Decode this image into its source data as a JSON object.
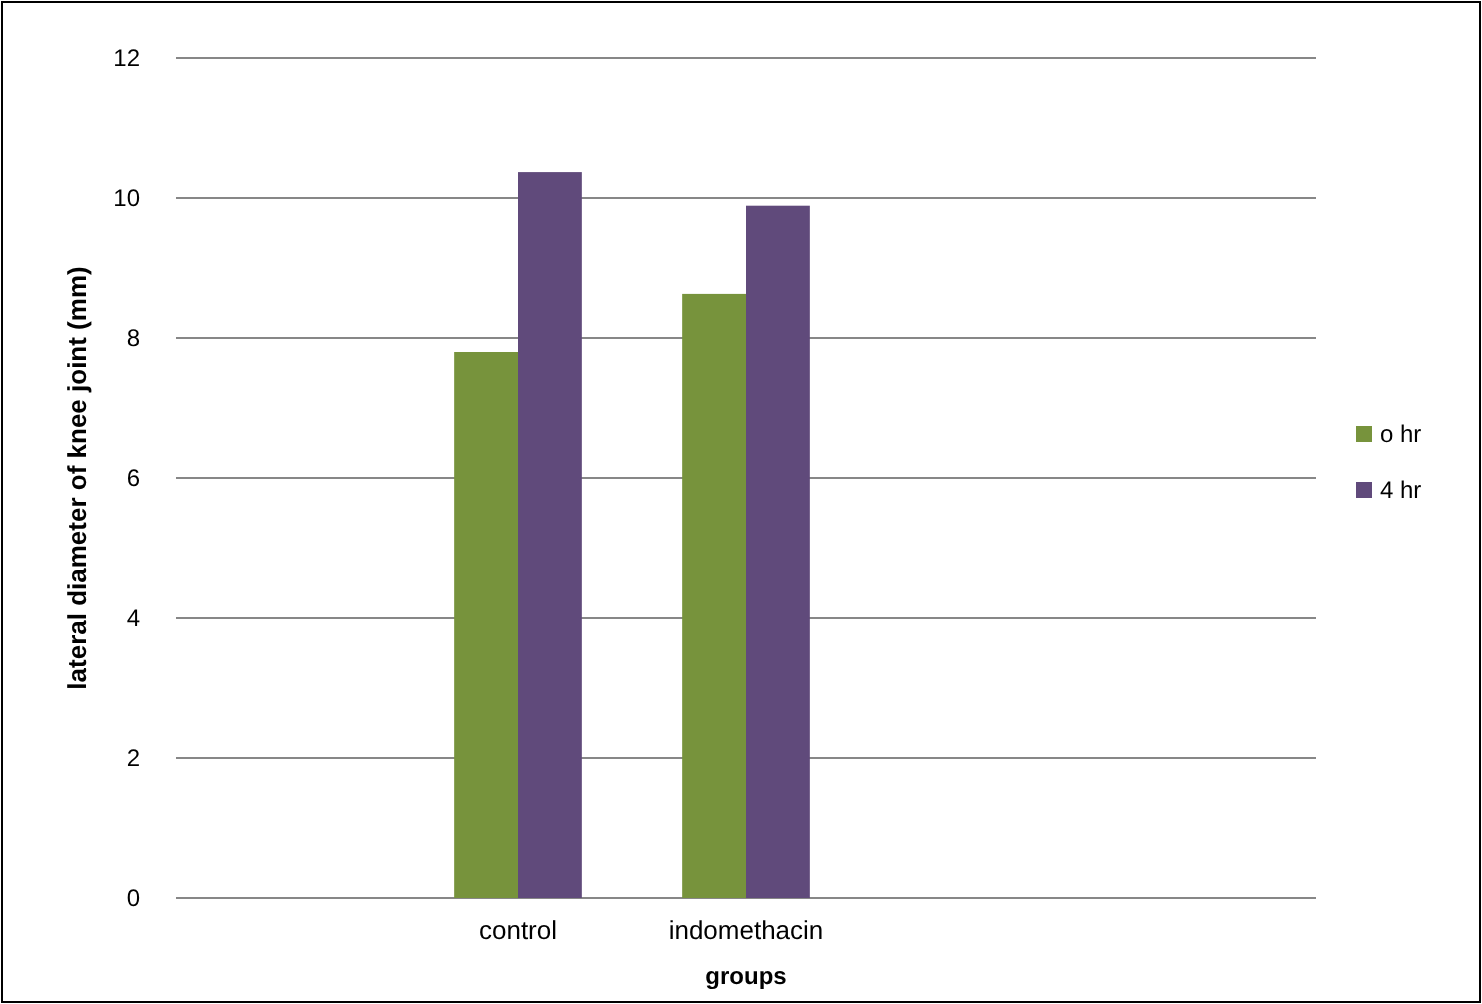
{
  "chart_data": {
    "type": "bar",
    "xlabel": "groups",
    "ylabel": "lateral diameter of knee joint (mm)",
    "categories": [
      null,
      "control",
      "indomethacin",
      null,
      null
    ],
    "series": [
      {
        "name": "o hr",
        "color": "#77933c",
        "values": [
          null,
          7.8,
          8.63,
          null,
          null
        ]
      },
      {
        "name": "4 hr",
        "color": "#604a7b",
        "values": [
          null,
          10.37,
          9.89,
          null,
          null
        ]
      }
    ],
    "ylim": [
      0,
      12
    ],
    "yticks": [
      0,
      2,
      4,
      6,
      8,
      10,
      12
    ],
    "grid": "y",
    "legend": "right"
  }
}
